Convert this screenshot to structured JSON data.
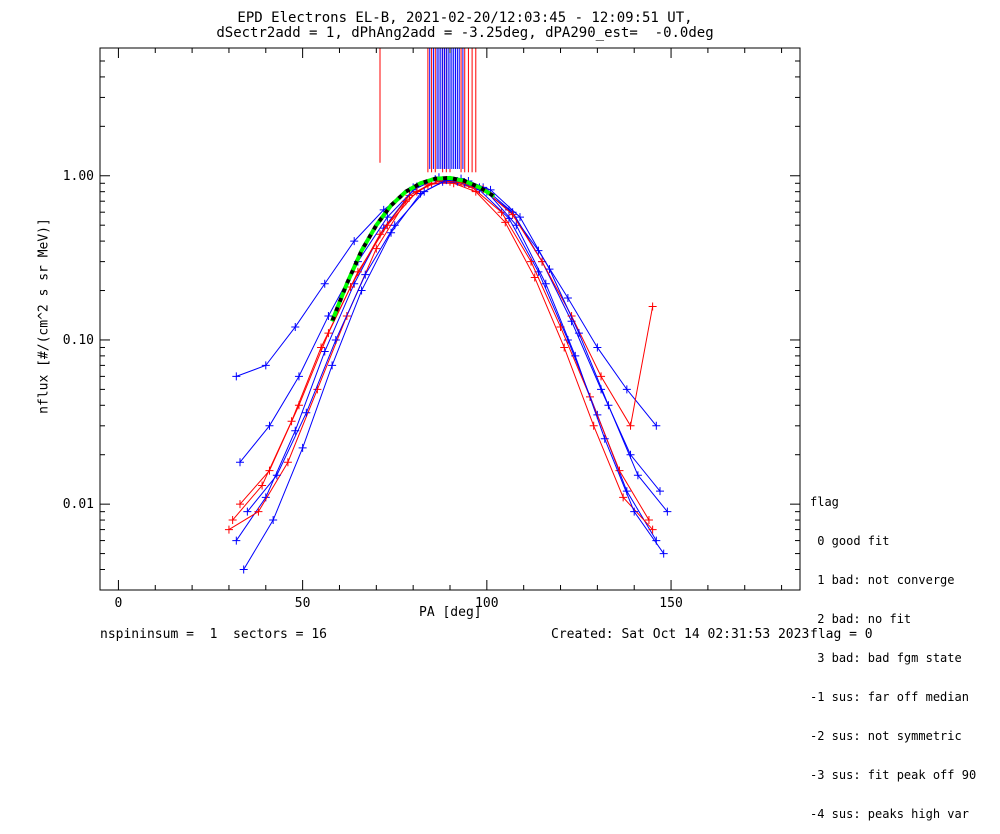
{
  "title_line1": "EPD Electrons EL-B, 2021-02-20/12:03:45 - 12:09:51 UT,",
  "title_line2": "dSectr2add = 1, dPhAng2add = -3.25deg, dPA290_est=  -0.0deg",
  "footer": {
    "left": "nspininsum =  1  sectors = 16",
    "created": "Created: Sat Oct 14 02:31:53 2023",
    "flag": "flag = 0"
  },
  "legend": {
    "title": "flag",
    "items": [
      " 0 good fit",
      " 1 bad: not converge",
      " 2 bad: no fit",
      " 3 bad: bad fgm state",
      "-1 sus: far off median",
      "-2 sus: not symmetric",
      "-3 sus: fit peak off 90",
      "-4 sus: peaks high var"
    ]
  },
  "colors": {
    "red_series": "#ff0000",
    "blue_series": "#0000ff",
    "fit_dashed": "#00ff00",
    "fit_black": "#000000"
  },
  "chart_data": {
    "type": "line",
    "xlabel": "PA [deg]",
    "ylabel": "nflux [#/(cm^2 s sr MeV)]",
    "xlim": [
      -5,
      185
    ],
    "ylim": [
      0.003,
      6
    ],
    "yscale": "log",
    "xticks": [
      0,
      50,
      100,
      150
    ],
    "xtick_labels": [
      "0",
      "50",
      "100",
      "150"
    ],
    "yticks": [
      0.01,
      0.1,
      1.0
    ],
    "ytick_labels": [
      "0.01",
      "0.10",
      "1.00"
    ],
    "series": [
      {
        "color": "blue",
        "x": [
          32,
          40,
          48,
          56,
          64,
          72,
          80,
          86,
          92,
          98,
          106,
          114,
          122,
          130,
          138,
          146
        ],
        "y": [
          0.006,
          0.011,
          0.028,
          0.085,
          0.22,
          0.48,
          0.82,
          0.95,
          0.92,
          0.82,
          0.55,
          0.26,
          0.1,
          0.035,
          0.012,
          0.006
        ]
      },
      {
        "color": "red",
        "x": [
          31,
          39,
          47,
          55,
          63,
          71,
          79,
          85,
          91,
          97,
          105,
          113,
          121,
          129,
          137,
          145
        ],
        "y": [
          0.008,
          0.013,
          0.032,
          0.09,
          0.21,
          0.44,
          0.76,
          0.9,
          0.9,
          0.8,
          0.52,
          0.24,
          0.09,
          0.03,
          0.011,
          0.007
        ]
      },
      {
        "color": "blue",
        "x": [
          33,
          41,
          49,
          57,
          65,
          73,
          81,
          87,
          93,
          99,
          107,
          115,
          123,
          131,
          139,
          147
        ],
        "y": [
          0.018,
          0.03,
          0.06,
          0.14,
          0.3,
          0.56,
          0.86,
          0.98,
          0.96,
          0.85,
          0.6,
          0.3,
          0.13,
          0.05,
          0.02,
          0.012
        ]
      },
      {
        "color": "red",
        "x": [
          30,
          38,
          46,
          54,
          62,
          70,
          78,
          84,
          90,
          96,
          104,
          112,
          120,
          128,
          136,
          144
        ],
        "y": [
          0.007,
          0.009,
          0.018,
          0.05,
          0.14,
          0.36,
          0.7,
          0.88,
          0.92,
          0.85,
          0.6,
          0.3,
          0.12,
          0.045,
          0.016,
          0.008
        ]
      },
      {
        "color": "blue",
        "x": [
          34,
          42,
          50,
          58,
          66,
          74,
          82,
          88,
          94,
          100,
          108,
          116,
          124,
          132,
          140,
          148
        ],
        "y": [
          0.004,
          0.008,
          0.022,
          0.07,
          0.2,
          0.45,
          0.78,
          0.92,
          0.9,
          0.8,
          0.5,
          0.22,
          0.08,
          0.025,
          0.009,
          0.005
        ]
      },
      {
        "color": "blue",
        "x": [
          32,
          40,
          48,
          56,
          64,
          72,
          80,
          86,
          92,
          98,
          106,
          114,
          122,
          130,
          138,
          146
        ],
        "y": [
          0.06,
          0.07,
          0.12,
          0.22,
          0.4,
          0.62,
          0.85,
          0.95,
          0.93,
          0.85,
          0.62,
          0.35,
          0.18,
          0.09,
          0.05,
          0.03
        ]
      },
      {
        "color": "red",
        "x": [
          33,
          41,
          49,
          57,
          65,
          73,
          81,
          87,
          93,
          99,
          107,
          115,
          123,
          131,
          139,
          145
        ],
        "y": [
          0.01,
          0.016,
          0.04,
          0.11,
          0.26,
          0.5,
          0.8,
          0.93,
          0.91,
          0.83,
          0.58,
          0.3,
          0.14,
          0.06,
          0.03,
          0.16
        ]
      },
      {
        "color": "blue",
        "x": [
          35,
          43,
          51,
          59,
          67,
          75,
          83,
          89,
          95,
          101,
          109,
          117,
          125,
          133,
          141,
          149
        ],
        "y": [
          0.009,
          0.015,
          0.036,
          0.1,
          0.25,
          0.5,
          0.8,
          0.94,
          0.93,
          0.82,
          0.56,
          0.27,
          0.11,
          0.04,
          0.015,
          0.009
        ]
      }
    ],
    "fit_curve": {
      "x": [
        58,
        62,
        66,
        70,
        74,
        78,
        82,
        86,
        90,
        94,
        98,
        102
      ],
      "y": [
        0.13,
        0.22,
        0.35,
        0.5,
        0.66,
        0.8,
        0.9,
        0.96,
        0.97,
        0.93,
        0.85,
        0.75
      ]
    },
    "vertical_lines": {
      "red_x": [
        71,
        84,
        85,
        86,
        88,
        89,
        90,
        93,
        94,
        95,
        96,
        97
      ],
      "blue_x": [
        84.5,
        85.5,
        86.5,
        87,
        87.5,
        88,
        88.5,
        89,
        89.5,
        90,
        90.5,
        91,
        91.5,
        92,
        92.5,
        93.5
      ]
    }
  }
}
